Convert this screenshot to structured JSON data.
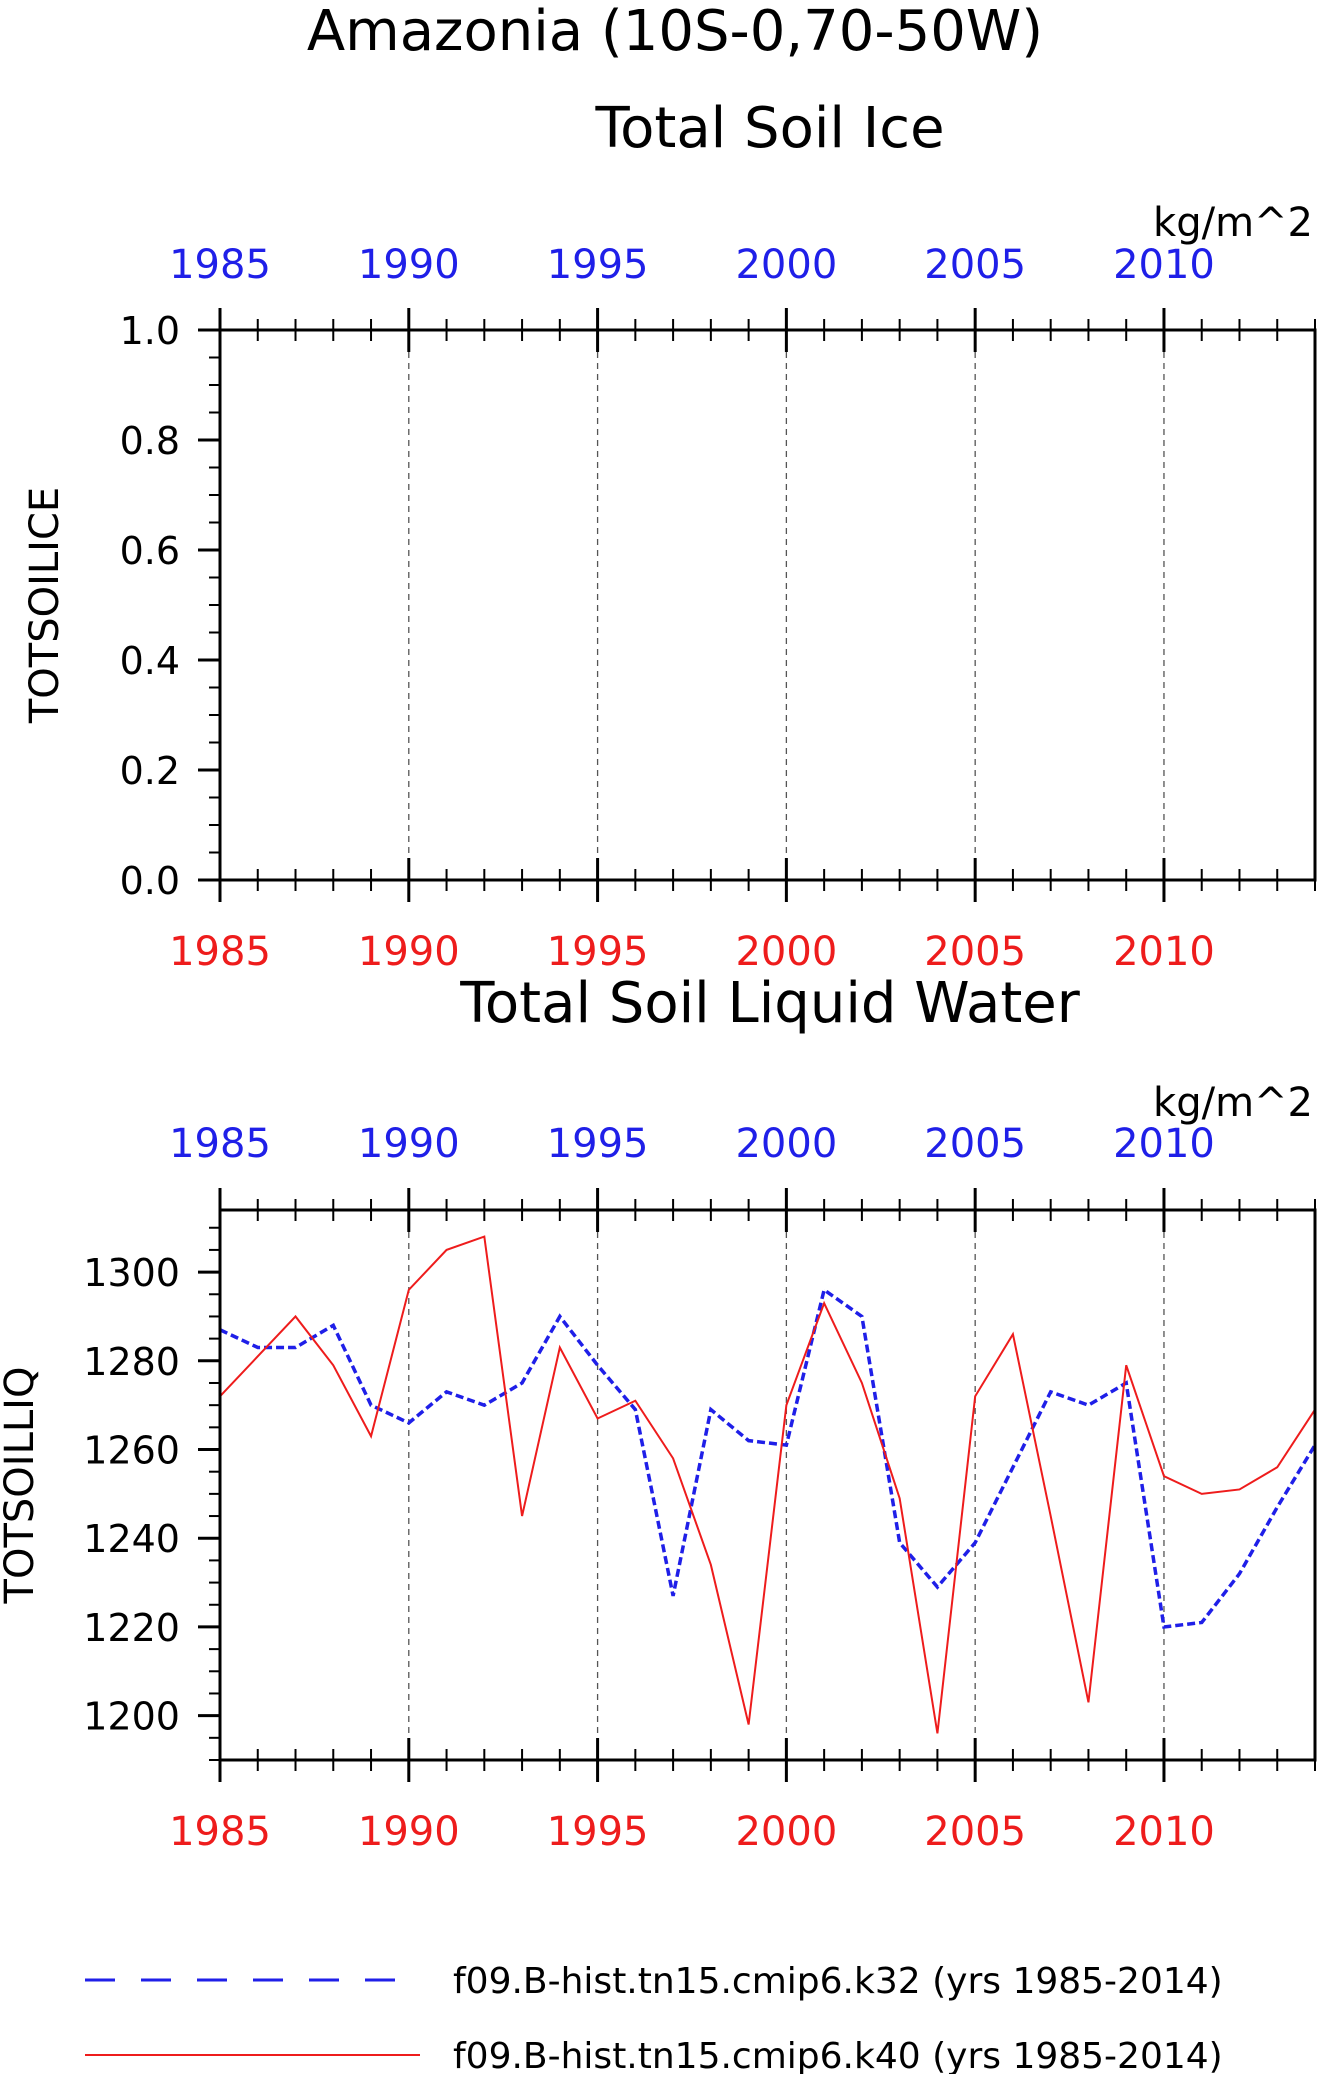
{
  "title": "Amazonia (10S-0,70-50W)",
  "colors": {
    "blue": "#1f1fe8",
    "red": "#ee1c1c",
    "axis": "#000000",
    "grid": "#555555"
  },
  "chart_data": [
    {
      "type": "line",
      "title": "Total Soil Ice",
      "units": "kg/m^2",
      "ylabel": "TOTSOILICE",
      "xlim": [
        1985,
        2014
      ],
      "ylim": [
        0,
        1.0
      ],
      "yticks": [
        0.0,
        0.2,
        0.4,
        0.6,
        0.8,
        1.0
      ],
      "ytick_labels": [
        "0.0",
        "0.2",
        "0.4",
        "0.6",
        "0.8",
        "1.0"
      ],
      "xticks": [
        1985,
        1990,
        1995,
        2000,
        2005,
        2010
      ],
      "xtick_labels": [
        "1985",
        "1990",
        "1995",
        "2000",
        "2005",
        "2010"
      ],
      "grid": "vertical dashed",
      "series": []
    },
    {
      "type": "line",
      "title": "Total Soil Liquid Water",
      "units": "kg/m^2",
      "ylabel": "TOTSOILLIQ",
      "xlim": [
        1985,
        2014
      ],
      "ylim": [
        1190,
        1314
      ],
      "yticks": [
        1200,
        1220,
        1240,
        1260,
        1280,
        1300
      ],
      "ytick_labels": [
        "1200",
        "1220",
        "1240",
        "1260",
        "1280",
        "1300"
      ],
      "xticks": [
        1985,
        1990,
        1995,
        2000,
        2005,
        2010
      ],
      "xtick_labels": [
        "1985",
        "1990",
        "1995",
        "2000",
        "2005",
        "2010"
      ],
      "grid": "vertical dashed",
      "x": [
        1985,
        1986,
        1987,
        1988,
        1989,
        1990,
        1991,
        1992,
        1993,
        1994,
        1995,
        1996,
        1997,
        1998,
        1999,
        2000,
        2001,
        2002,
        2003,
        2004,
        2005,
        2006,
        2007,
        2008,
        2009,
        2010,
        2011,
        2012,
        2013,
        2014
      ],
      "series": [
        {
          "name": "f09.B-hist.tn15.cmip6.k32 (yrs 1985-2014)",
          "color": "blue",
          "style": "dashed",
          "values": [
            1287,
            1283,
            1283,
            1288,
            1270,
            1266,
            1273,
            1270,
            1275,
            1290,
            1279,
            1269,
            1227,
            1269,
            1262,
            1261,
            1296,
            1290,
            1239,
            1229,
            1239,
            1256,
            1273,
            1270,
            1275,
            1220,
            1221,
            1232,
            1247,
            1261
          ]
        },
        {
          "name": "f09.B-hist.tn15.cmip6.k40 (yrs 1985-2014)",
          "color": "red",
          "style": "solid",
          "values": [
            1272,
            1281,
            1290,
            1279,
            1263,
            1296,
            1305,
            1308,
            1245,
            1283,
            1267,
            1271,
            1258,
            1234,
            1198,
            1270,
            1293,
            1275,
            1249,
            1196,
            1272,
            1286,
            1245,
            1203,
            1279,
            1254,
            1250,
            1251,
            1256,
            1269
          ]
        }
      ]
    }
  ],
  "legend": {
    "position": "bottom",
    "entries": [
      {
        "label": "f09.B-hist.tn15.cmip6.k32 (yrs 1985-2014)",
        "color": "blue",
        "style": "dashed"
      },
      {
        "label": "f09.B-hist.tn15.cmip6.k40 (yrs 1985-2014)",
        "color": "red",
        "style": "solid"
      }
    ]
  }
}
